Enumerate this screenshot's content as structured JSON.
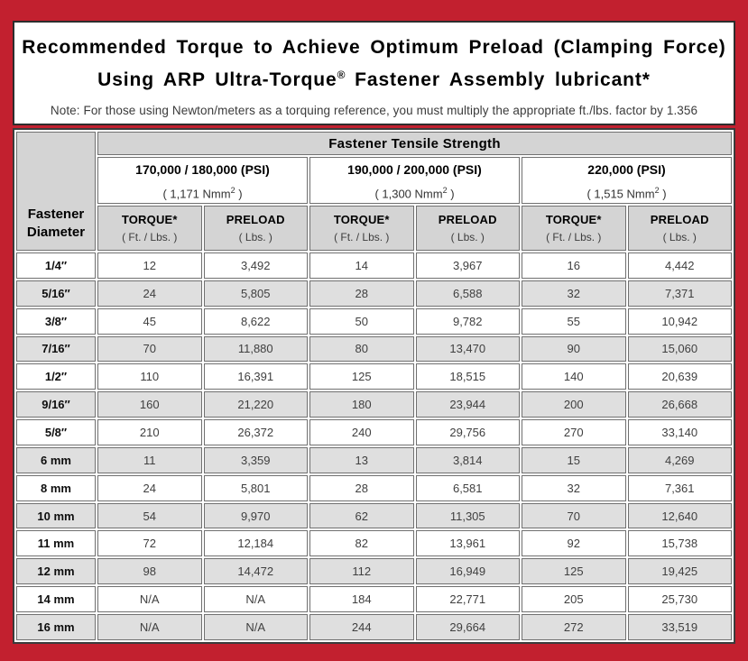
{
  "page": {
    "title_line1": "Recommended Torque to Achieve Optimum Preload (Clamping Force)",
    "title_line2_pre": "Using ARP Ultra-Torque",
    "title_line2_sup": "®",
    "title_line2_post": " Fastener Assembly lubricant*",
    "note": "Note: For those using Newton/meters as a torquing reference, you must multiply the appropriate ft./lbs. factor by 1.356"
  },
  "colors": {
    "frame_red": "#c2202f",
    "header_gray": "#d4d4d4",
    "row_alt_gray": "#dfdfdf",
    "panel_border": "#2d2d2d",
    "cell_border": "#707070"
  },
  "table": {
    "corner_line1": "Fastener",
    "corner_line2": "Diameter",
    "tensile_header": "Fastener Tensile Strength",
    "torque_label": "TORQUE*",
    "torque_unit": "( Ft. / Lbs. )",
    "preload_label": "PRELOAD",
    "preload_unit": "( Lbs. )",
    "groups": [
      {
        "psi": "170,000 / 180,000 (PSI)",
        "nmm_pre": "( 1,171 Nmm",
        "nmm_sup": "2",
        "nmm_post": " )"
      },
      {
        "psi": "190,000 / 200,000 (PSI)",
        "nmm_pre": "( 1,300 Nmm",
        "nmm_sup": "2",
        "nmm_post": " )"
      },
      {
        "psi": "220,000 (PSI)",
        "nmm_pre": "( 1,515 Nmm",
        "nmm_sup": "2",
        "nmm_post": " )"
      }
    ],
    "rows": [
      {
        "diameter": "1/4″",
        "values": [
          "12",
          "3,492",
          "14",
          "3,967",
          "16",
          "4,442"
        ]
      },
      {
        "diameter": "5/16″",
        "values": [
          "24",
          "5,805",
          "28",
          "6,588",
          "32",
          "7,371"
        ]
      },
      {
        "diameter": "3/8″",
        "values": [
          "45",
          "8,622",
          "50",
          "9,782",
          "55",
          "10,942"
        ]
      },
      {
        "diameter": "7/16″",
        "values": [
          "70",
          "11,880",
          "80",
          "13,470",
          "90",
          "15,060"
        ]
      },
      {
        "diameter": "1/2″",
        "values": [
          "110",
          "16,391",
          "125",
          "18,515",
          "140",
          "20,639"
        ]
      },
      {
        "diameter": "9/16″",
        "values": [
          "160",
          "21,220",
          "180",
          "23,944",
          "200",
          "26,668"
        ]
      },
      {
        "diameter": "5/8″",
        "values": [
          "210",
          "26,372",
          "240",
          "29,756",
          "270",
          "33,140"
        ]
      },
      {
        "diameter": "6 mm",
        "values": [
          "11",
          "3,359",
          "13",
          "3,814",
          "15",
          "4,269"
        ]
      },
      {
        "diameter": "8 mm",
        "values": [
          "24",
          "5,801",
          "28",
          "6,581",
          "32",
          "7,361"
        ]
      },
      {
        "diameter": "10 mm",
        "values": [
          "54",
          "9,970",
          "62",
          "11,305",
          "70",
          "12,640"
        ]
      },
      {
        "diameter": "11 mm",
        "values": [
          "72",
          "12,184",
          "82",
          "13,961",
          "92",
          "15,738"
        ]
      },
      {
        "diameter": "12 mm",
        "values": [
          "98",
          "14,472",
          "112",
          "16,949",
          "125",
          "19,425"
        ]
      },
      {
        "diameter": "14 mm",
        "values": [
          "N/A",
          "N/A",
          "184",
          "22,771",
          "205",
          "25,730"
        ]
      },
      {
        "diameter": "16 mm",
        "values": [
          "N/A",
          "N/A",
          "244",
          "29,664",
          "272",
          "33,519"
        ]
      }
    ]
  }
}
